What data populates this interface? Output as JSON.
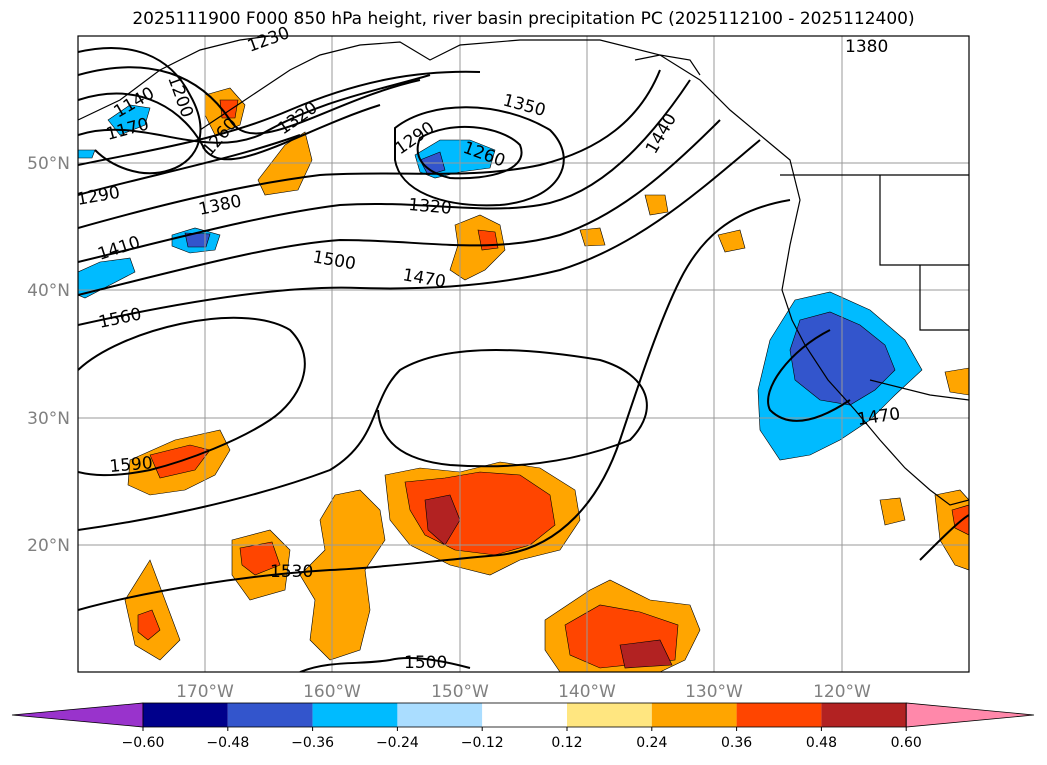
{
  "title": "2025111900 F000 850 hPa height, river basin precipitation PC (2025112100 - 2025112400)",
  "lat_labels": [
    "50°N",
    "40°N",
    "30°N",
    "20°N"
  ],
  "lon_labels": [
    "170°W",
    "160°W",
    "150°W",
    "140°W",
    "130°W",
    "120°W"
  ],
  "contour_labels": [
    "1230",
    "1200",
    "1140",
    "1170",
    "1260",
    "1320",
    "1350",
    "1290",
    "1260",
    "1440",
    "1380",
    "1290",
    "1380",
    "1320",
    "1410",
    "1500",
    "1470",
    "1560",
    "1470",
    "1590",
    "1530",
    "1500"
  ],
  "colorbar": {
    "ticks": [
      "−0.60",
      "−0.48",
      "−0.36",
      "−0.24",
      "−0.12",
      "0.12",
      "0.24",
      "0.36",
      "0.48",
      "0.60"
    ],
    "colors": [
      "#9933cc",
      "#00008b",
      "#3355cc",
      "#00bbff",
      "#aaddff",
      "#ffffff",
      "#ffe680",
      "#ffa500",
      "#ff4500",
      "#b22222",
      "#ff88aa"
    ]
  }
}
